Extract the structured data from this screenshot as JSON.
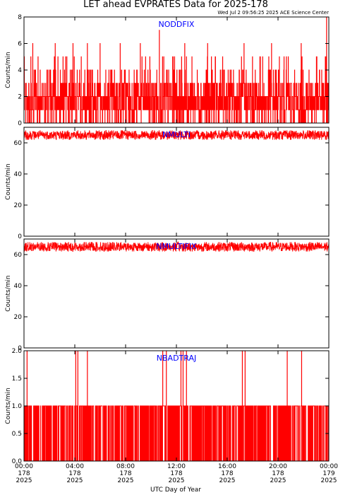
{
  "header": {
    "title": "LET ahead EVPRATES Data for 2025-178",
    "stamp": "Wed Jul  2 09:56:25 2025 ACE Science Center"
  },
  "colors": {
    "series": "#ff0000",
    "panel_label": "#0000ff",
    "axis": "#000000"
  },
  "chart_data": [
    {
      "type": "line",
      "name": "NODDFIX",
      "ylabel": "Counts/min",
      "ylim": [
        0,
        8
      ],
      "yticks": [
        "0",
        "2",
        "4",
        "6",
        "8"
      ],
      "x": "minute of day 0-1440, 1-minute resolution",
      "pattern": "integer counts mostly 0-4, occasional 5-7, single 8 at end of day",
      "spikes": [
        {
          "x": 42,
          "y": 6
        },
        {
          "x": 148,
          "y": 6
        },
        {
          "x": 232,
          "y": 6
        },
        {
          "x": 300,
          "y": 6
        },
        {
          "x": 360,
          "y": 6
        },
        {
          "x": 455,
          "y": 6
        },
        {
          "x": 550,
          "y": 6
        },
        {
          "x": 640,
          "y": 7
        },
        {
          "x": 760,
          "y": 6
        },
        {
          "x": 868,
          "y": 6
        },
        {
          "x": 1040,
          "y": 6
        },
        {
          "x": 1170,
          "y": 6
        },
        {
          "x": 1310,
          "y": 6
        },
        {
          "x": 1430,
          "y": 8
        }
      ]
    },
    {
      "type": "line",
      "name": "NMULTI",
      "ylabel": "Counts/min",
      "ylim": [
        0,
        70
      ],
      "yticks": [
        "0",
        "20",
        "40",
        "60"
      ],
      "mean": 65,
      "range": [
        62,
        68
      ]
    },
    {
      "type": "line",
      "name": "NMULTIFIX",
      "ylabel": "Counts/min",
      "ylim": [
        0,
        70
      ],
      "yticks": [
        "0",
        "20",
        "40",
        "60"
      ],
      "mean": 65,
      "range": [
        62,
        68
      ]
    },
    {
      "type": "line",
      "name": "NBADTRAJ",
      "ylabel": "Counts/min",
      "ylim": [
        0,
        2
      ],
      "yticks": [
        "0.0",
        "0.5",
        "1.0",
        "1.5",
        "2.0"
      ],
      "pattern": "values 0 or 1 per minute, sparse spikes to 2",
      "spikes_at_2": [
        15,
        245,
        255,
        300,
        656,
        673,
        742,
        752,
        768,
        1032,
        1045,
        1244,
        1312
      ]
    }
  ],
  "x_axis": {
    "label": "UTC Day of Year",
    "ticks": [
      {
        "time": "00:00",
        "doy": "178",
        "year": "2025"
      },
      {
        "time": "04:00",
        "doy": "178",
        "year": "2025"
      },
      {
        "time": "08:00",
        "doy": "178",
        "year": "2025"
      },
      {
        "time": "12:00",
        "doy": "178",
        "year": "2025"
      },
      {
        "time": "16:00",
        "doy": "178",
        "year": "2025"
      },
      {
        "time": "20:00",
        "doy": "178",
        "year": "2025"
      },
      {
        "time": "00:00",
        "doy": "179",
        "year": "2025"
      }
    ]
  }
}
